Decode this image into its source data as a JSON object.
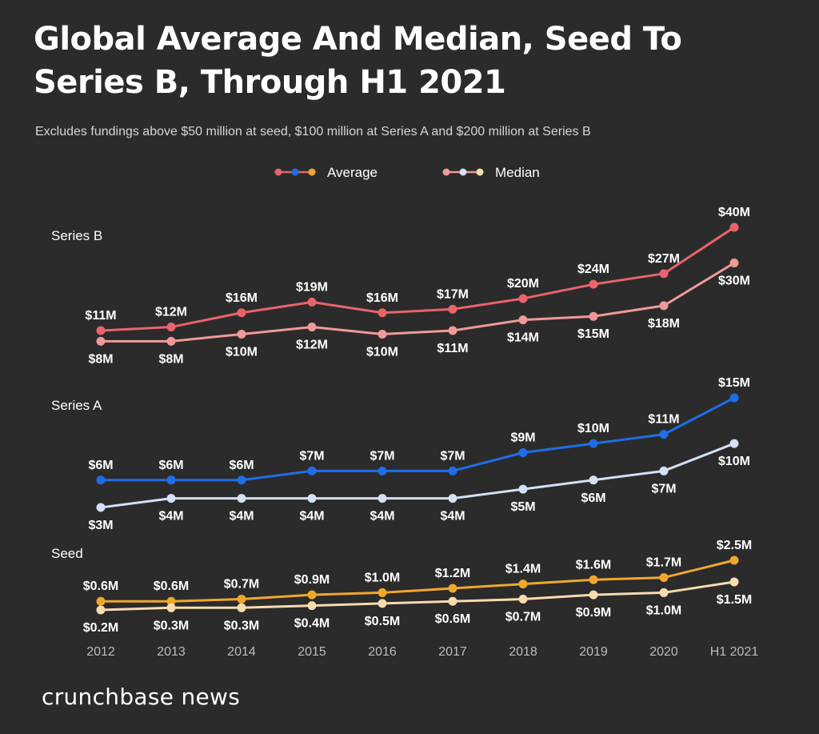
{
  "title": "Global Average And Median, Seed To Series B, Through H1 2021",
  "subtitle": "Excludes fundings above $50 million at seed, $100 million at Series A and $200 million at Series B",
  "brand": "crunchbase news",
  "colors": {
    "background": "#2b2b2b",
    "seriesB_average": "#e8646b",
    "seriesB_median": "#ef9a98",
    "seriesA_average": "#1f6ee8",
    "seriesA_median": "#d3e0f6",
    "seed_average": "#f0a72e",
    "seed_median": "#f7dcb0"
  },
  "chart_data": {
    "type": "line",
    "x": [
      "2012",
      "2013",
      "2014",
      "2015",
      "2016",
      "2017",
      "2018",
      "2019",
      "2020",
      "H1 2021"
    ],
    "legend": [
      "Average",
      "Median"
    ],
    "legend_position": "top-center",
    "grid": false,
    "panels": [
      {
        "name": "Series B",
        "unit": "$M",
        "series": [
          {
            "name": "Average",
            "color": "#e8646b",
            "values": [
              11,
              12,
              16,
              19,
              16,
              17,
              20,
              24,
              27,
              40
            ],
            "labels": [
              "$11M",
              "$12M",
              "$16M",
              "$19M",
              "$16M",
              "$17M",
              "$20M",
              "$24M",
              "$27M",
              "$40M"
            ]
          },
          {
            "name": "Median",
            "color": "#ef9a98",
            "values": [
              8,
              8,
              10,
              12,
              10,
              11,
              14,
              15,
              18,
              30
            ],
            "labels": [
              "$8M",
              "$8M",
              "$10M",
              "$12M",
              "$10M",
              "$11M",
              "$14M",
              "$15M",
              "$18M",
              "$30M"
            ]
          }
        ]
      },
      {
        "name": "Series A",
        "unit": "$M",
        "series": [
          {
            "name": "Average",
            "color": "#1f6ee8",
            "values": [
              6,
              6,
              6,
              7,
              7,
              7,
              9,
              10,
              11,
              15
            ],
            "labels": [
              "$6M",
              "$6M",
              "$6M",
              "$7M",
              "$7M",
              "$7M",
              "$9M",
              "$10M",
              "$11M",
              "$15M"
            ]
          },
          {
            "name": "Median",
            "color": "#d3e0f6",
            "values": [
              3,
              4,
              4,
              4,
              4,
              4,
              5,
              6,
              7,
              10
            ],
            "labels": [
              "$3M",
              "$4M",
              "$4M",
              "$4M",
              "$4M",
              "$4M",
              "$5M",
              "$6M",
              "$7M",
              "$10M"
            ]
          }
        ]
      },
      {
        "name": "Seed",
        "unit": "$M",
        "series": [
          {
            "name": "Average",
            "color": "#f0a72e",
            "values": [
              0.6,
              0.6,
              0.7,
              0.9,
              1.0,
              1.2,
              1.4,
              1.6,
              1.7,
              2.5
            ],
            "labels": [
              "$0.6M",
              "$0.6M",
              "$0.7M",
              "$0.9M",
              "$1.0M",
              "$1.2M",
              "$1.4M",
              "$1.6M",
              "$1.7M",
              "$2.5M"
            ]
          },
          {
            "name": "Median",
            "color": "#f7dcb0",
            "values": [
              0.2,
              0.3,
              0.3,
              0.4,
              0.5,
              0.6,
              0.7,
              0.9,
              1.0,
              1.5
            ],
            "labels": [
              "$0.2M",
              "$0.3M",
              "$0.3M",
              "$0.4M",
              "$0.5M",
              "$0.6M",
              "$0.7M",
              "$0.9M",
              "$1.0M",
              "$1.5M"
            ]
          }
        ]
      }
    ]
  }
}
